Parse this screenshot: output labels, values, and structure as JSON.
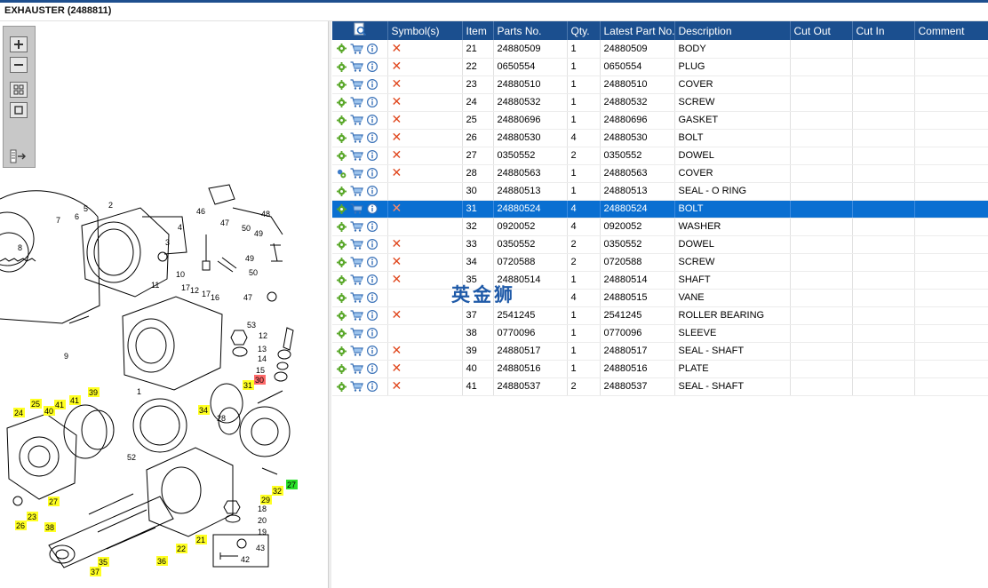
{
  "window": {
    "title": "EXHAUSTER (2488811)"
  },
  "toolbar": {
    "zoom_in_icon": "plus-icon",
    "zoom_out_icon": "minus-icon",
    "fit_icon": "four-squares-icon",
    "window_icon": "square-icon",
    "export_icon": "export-arrow-icon"
  },
  "diagram": {
    "callouts": [
      "1",
      "2",
      "3",
      "4",
      "5",
      "6",
      "7",
      "8",
      "9",
      "10",
      "11",
      "12",
      "13",
      "14",
      "15",
      "16",
      "17",
      "18",
      "19",
      "20",
      "21",
      "22",
      "23",
      "24",
      "25",
      "26",
      "27",
      "28",
      "29",
      "30",
      "31",
      "32",
      "33",
      "34",
      "35",
      "36",
      "37",
      "38",
      "39",
      "40",
      "41",
      "42",
      "43",
      "46",
      "47",
      "48",
      "49",
      "50",
      "51",
      "52",
      "53"
    ],
    "highlighted_yellow": [
      "21",
      "22",
      "23",
      "24",
      "25",
      "26",
      "27",
      "30",
      "32",
      "33",
      "34",
      "35",
      "36",
      "37",
      "38",
      "39",
      "40",
      "41"
    ],
    "highlighted_red": [
      "31"
    ],
    "highlighted_green": [
      "28"
    ]
  },
  "table": {
    "headers": {
      "tool": "",
      "symbols": "Symbol(s)",
      "item": "Item",
      "parts_no": "Parts No.",
      "qty": "Qty.",
      "latest_part_no": "Latest Part No.",
      "description": "Description",
      "cut_out": "Cut Out",
      "cut_in": "Cut In",
      "comment": "Comment"
    },
    "rows": [
      {
        "item": "21",
        "parts_no": "24880509",
        "qty": "1",
        "latest": "24880509",
        "description": "BODY",
        "symbol": "x"
      },
      {
        "item": "22",
        "parts_no": "0650554",
        "qty": "1",
        "latest": "0650554",
        "description": "PLUG",
        "symbol": "x"
      },
      {
        "item": "23",
        "parts_no": "24880510",
        "qty": "1",
        "latest": "24880510",
        "description": "COVER",
        "symbol": "x"
      },
      {
        "item": "24",
        "parts_no": "24880532",
        "qty": "1",
        "latest": "24880532",
        "description": "SCREW",
        "symbol": "x"
      },
      {
        "item": "25",
        "parts_no": "24880696",
        "qty": "1",
        "latest": "24880696",
        "description": "GASKET",
        "symbol": "x"
      },
      {
        "item": "26",
        "parts_no": "24880530",
        "qty": "4",
        "latest": "24880530",
        "description": "BOLT",
        "symbol": "x"
      },
      {
        "item": "27",
        "parts_no": "0350552",
        "qty": "2",
        "latest": "0350552",
        "description": "DOWEL",
        "symbol": "x"
      },
      {
        "item": "28",
        "parts_no": "24880563",
        "qty": "1",
        "latest": "24880563",
        "description": "COVER",
        "symbol": "x"
      },
      {
        "item": "30",
        "parts_no": "24880513",
        "qty": "1",
        "latest": "24880513",
        "description": "SEAL - O RING",
        "symbol": ""
      },
      {
        "item": "31",
        "parts_no": "24880524",
        "qty": "4",
        "latest": "24880524",
        "description": "BOLT",
        "symbol": "x"
      },
      {
        "item": "32",
        "parts_no": "0920052",
        "qty": "4",
        "latest": "0920052",
        "description": "WASHER",
        "symbol": ""
      },
      {
        "item": "33",
        "parts_no": "0350552",
        "qty": "2",
        "latest": "0350552",
        "description": "DOWEL",
        "symbol": "x"
      },
      {
        "item": "34",
        "parts_no": "0720588",
        "qty": "2",
        "latest": "0720588",
        "description": "SCREW",
        "symbol": "x"
      },
      {
        "item": "35",
        "parts_no": "24880514",
        "qty": "1",
        "latest": "24880514",
        "description": "SHAFT",
        "symbol": "x"
      },
      {
        "item": "",
        "parts_no": "",
        "qty": "4",
        "latest": "24880515",
        "description": "VANE",
        "symbol": ""
      },
      {
        "item": "37",
        "parts_no": "2541245",
        "qty": "1",
        "latest": "2541245",
        "description": "ROLLER BEARING",
        "symbol": "x"
      },
      {
        "item": "38",
        "parts_no": "0770096",
        "qty": "1",
        "latest": "0770096",
        "description": "SLEEVE",
        "symbol": ""
      },
      {
        "item": "39",
        "parts_no": "24880517",
        "qty": "1",
        "latest": "24880517",
        "description": "SEAL - SHAFT",
        "symbol": "x"
      },
      {
        "item": "40",
        "parts_no": "24880516",
        "qty": "1",
        "latest": "24880516",
        "description": "PLATE",
        "symbol": "x"
      },
      {
        "item": "41",
        "parts_no": "24880537",
        "qty": "2",
        "latest": "24880537",
        "description": "SEAL - SHAFT",
        "symbol": "x"
      }
    ],
    "selected_item": "31"
  },
  "watermark": {
    "text": "英金狮"
  },
  "colors": {
    "header_bg": "#1b4f8f",
    "selected_row": "#0a6fd1",
    "x_symbol": "#e0461c",
    "highlight_yellow": "#ffff22",
    "highlight_red": "#ff6a6a",
    "highlight_green": "#29e029"
  }
}
